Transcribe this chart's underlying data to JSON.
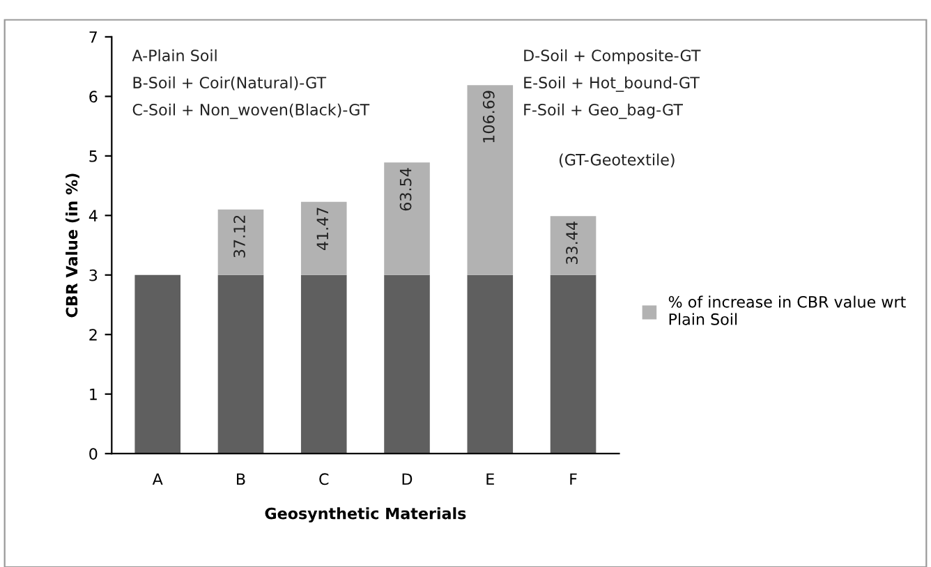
{
  "chart_data": {
    "type": "bar",
    "stacked": true,
    "xlabel": "Geosynthetic Materials",
    "ylabel": "CBR Value (in %)",
    "categories": [
      "A",
      "B",
      "C",
      "D",
      "E",
      "F"
    ],
    "series": [
      {
        "color": "#5f5f5f",
        "values": [
          3.0,
          3.0,
          3.0,
          3.0,
          3.0,
          3.0
        ]
      },
      {
        "name": "% of increase in CBR value wrt Plain Soil",
        "color": "#b2b2b2",
        "values": [
          null,
          1.1,
          1.23,
          1.89,
          3.19,
          0.99
        ]
      }
    ],
    "ylim": [
      0,
      7
    ],
    "yticks": [
      0,
      1,
      2,
      3,
      4,
      5,
      6,
      7
    ],
    "grid": false,
    "legend": "right",
    "annotations": [
      "A-Plain Soil",
      "B-Soil + Coir(Natural)-GT",
      "C-Soil + Non_woven(Black)-GT",
      "D-Soil + Composite-GT",
      "E-Soil + Hot_bound-GT",
      "F-Soil + Geo_bag-GT",
      "(GT-Geotextile)",
      {
        "text": "37.12",
        "x": "B",
        "y": 4.1
      },
      {
        "text": "41.47",
        "x": "C",
        "y": 4.23
      },
      {
        "text": "63.54",
        "x": "D",
        "y": 4.89
      },
      {
        "text": "106.69",
        "x": "E",
        "y": 6.19
      },
      {
        "text": "33.44",
        "x": "F",
        "y": 3.99
      }
    ]
  }
}
